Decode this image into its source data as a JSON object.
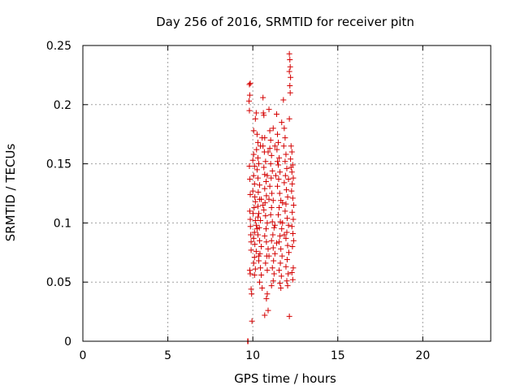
{
  "chart_data": {
    "type": "scatter",
    "title": "Day 256 of 2016, SRMTID for receiver pitn",
    "xlabel": "GPS time / hours",
    "ylabel": "SRMTID / TECUs",
    "xlim": [
      0,
      24
    ],
    "ylim": [
      0,
      0.25
    ],
    "x_ticks": [
      0,
      5,
      10,
      15,
      20
    ],
    "x_tick_labels": [
      "0",
      "5",
      "10",
      "15",
      "20"
    ],
    "y_ticks": [
      0,
      0.05,
      0.1,
      0.15,
      0.2,
      0.25
    ],
    "y_tick_labels": [
      "0",
      "0.05",
      "0.1",
      "0.15",
      "0.2",
      "0.25"
    ],
    "grid": true,
    "marker": "+",
    "color": "#d40000",
    "points": [
      [
        9.7,
        0.0
      ],
      [
        9.7,
        0.0
      ],
      [
        9.72,
        0.0
      ],
      [
        9.8,
        0.217
      ],
      [
        9.85,
        0.218
      ],
      [
        9.82,
        0.208
      ],
      [
        9.78,
        0.203
      ],
      [
        9.8,
        0.195
      ],
      [
        9.8,
        0.148
      ],
      [
        9.83,
        0.137
      ],
      [
        9.85,
        0.124
      ],
      [
        9.82,
        0.11
      ],
      [
        9.85,
        0.103
      ],
      [
        9.88,
        0.09
      ],
      [
        9.9,
        0.077
      ],
      [
        9.82,
        0.06
      ],
      [
        9.85,
        0.057
      ],
      [
        9.9,
        0.044
      ],
      [
        9.93,
        0.04
      ],
      [
        9.95,
        0.017
      ],
      [
        9.86,
        0.097
      ],
      [
        9.9,
        0.084
      ],
      [
        10.0,
        0.153
      ],
      [
        10.05,
        0.158
      ],
      [
        10.1,
        0.148
      ],
      [
        10.05,
        0.14
      ],
      [
        10.1,
        0.133
      ],
      [
        10.0,
        0.127
      ],
      [
        10.12,
        0.122
      ],
      [
        10.15,
        0.118
      ],
      [
        10.08,
        0.113
      ],
      [
        10.02,
        0.108
      ],
      [
        10.15,
        0.102
      ],
      [
        10.2,
        0.098
      ],
      [
        10.1,
        0.092
      ],
      [
        10.05,
        0.087
      ],
      [
        10.12,
        0.082
      ],
      [
        10.2,
        0.076
      ],
      [
        10.1,
        0.071
      ],
      [
        10.05,
        0.066
      ],
      [
        10.15,
        0.061
      ],
      [
        10.1,
        0.056
      ],
      [
        10.2,
        0.193
      ],
      [
        10.25,
        0.175
      ],
      [
        10.3,
        0.168
      ],
      [
        10.22,
        0.162
      ],
      [
        10.3,
        0.155
      ],
      [
        10.35,
        0.15
      ],
      [
        10.25,
        0.145
      ],
      [
        10.3,
        0.138
      ],
      [
        10.4,
        0.132
      ],
      [
        10.32,
        0.126
      ],
      [
        10.4,
        0.12
      ],
      [
        10.3,
        0.114
      ],
      [
        10.35,
        0.108
      ],
      [
        10.45,
        0.102
      ],
      [
        10.38,
        0.096
      ],
      [
        10.3,
        0.09
      ],
      [
        10.4,
        0.085
      ],
      [
        10.5,
        0.08
      ],
      [
        10.42,
        0.074
      ],
      [
        10.35,
        0.068
      ],
      [
        10.45,
        0.062
      ],
      [
        10.5,
        0.056
      ],
      [
        10.4,
        0.05
      ],
      [
        10.55,
        0.045
      ],
      [
        10.6,
        0.206
      ],
      [
        10.62,
        0.193
      ],
      [
        10.65,
        0.191
      ],
      [
        10.7,
        0.172
      ],
      [
        10.6,
        0.165
      ],
      [
        10.68,
        0.16
      ],
      [
        10.75,
        0.152
      ],
      [
        10.65,
        0.147
      ],
      [
        10.7,
        0.141
      ],
      [
        10.78,
        0.135
      ],
      [
        10.7,
        0.129
      ],
      [
        10.8,
        0.123
      ],
      [
        10.72,
        0.117
      ],
      [
        10.65,
        0.111
      ],
      [
        10.75,
        0.106
      ],
      [
        10.85,
        0.1
      ],
      [
        10.78,
        0.095
      ],
      [
        10.7,
        0.089
      ],
      [
        10.8,
        0.084
      ],
      [
        10.9,
        0.078
      ],
      [
        10.82,
        0.072
      ],
      [
        10.75,
        0.066
      ],
      [
        10.85,
        0.06
      ],
      [
        10.7,
        0.022
      ],
      [
        10.9,
        0.026
      ],
      [
        10.8,
        0.036
      ],
      [
        10.85,
        0.04
      ],
      [
        10.95,
        0.196
      ],
      [
        11.0,
        0.178
      ],
      [
        11.05,
        0.17
      ],
      [
        11.0,
        0.163
      ],
      [
        11.1,
        0.157
      ],
      [
        11.05,
        0.15
      ],
      [
        11.15,
        0.144
      ],
      [
        11.08,
        0.138
      ],
      [
        11.0,
        0.131
      ],
      [
        11.12,
        0.125
      ],
      [
        11.2,
        0.119
      ],
      [
        11.1,
        0.113
      ],
      [
        11.05,
        0.107
      ],
      [
        11.15,
        0.101
      ],
      [
        11.25,
        0.096
      ],
      [
        11.18,
        0.09
      ],
      [
        11.1,
        0.085
      ],
      [
        11.2,
        0.079
      ],
      [
        11.3,
        0.074
      ],
      [
        11.22,
        0.068
      ],
      [
        11.15,
        0.062
      ],
      [
        11.25,
        0.057
      ],
      [
        11.2,
        0.051
      ],
      [
        11.1,
        0.047
      ],
      [
        11.4,
        0.192
      ],
      [
        11.45,
        0.175
      ],
      [
        11.5,
        0.168
      ],
      [
        11.42,
        0.162
      ],
      [
        11.55,
        0.155
      ],
      [
        11.5,
        0.149
      ],
      [
        11.6,
        0.143
      ],
      [
        11.52,
        0.137
      ],
      [
        11.45,
        0.131
      ],
      [
        11.58,
        0.125
      ],
      [
        11.65,
        0.119
      ],
      [
        11.55,
        0.113
      ],
      [
        11.5,
        0.107
      ],
      [
        11.62,
        0.101
      ],
      [
        11.7,
        0.095
      ],
      [
        11.6,
        0.089
      ],
      [
        11.55,
        0.084
      ],
      [
        11.65,
        0.078
      ],
      [
        11.72,
        0.072
      ],
      [
        11.62,
        0.066
      ],
      [
        11.55,
        0.06
      ],
      [
        11.68,
        0.055
      ],
      [
        11.6,
        0.049
      ],
      [
        11.65,
        0.045
      ],
      [
        11.8,
        0.204
      ],
      [
        11.85,
        0.18
      ],
      [
        11.9,
        0.172
      ],
      [
        11.82,
        0.165
      ],
      [
        11.95,
        0.158
      ],
      [
        11.9,
        0.152
      ],
      [
        12.0,
        0.146
      ],
      [
        11.92,
        0.14
      ],
      [
        11.85,
        0.134
      ],
      [
        11.98,
        0.128
      ],
      [
        12.05,
        0.122
      ],
      [
        11.95,
        0.116
      ],
      [
        11.9,
        0.11
      ],
      [
        12.02,
        0.104
      ],
      [
        12.1,
        0.098
      ],
      [
        12.0,
        0.092
      ],
      [
        11.95,
        0.087
      ],
      [
        12.05,
        0.081
      ],
      [
        12.12,
        0.075
      ],
      [
        12.02,
        0.069
      ],
      [
        11.95,
        0.063
      ],
      [
        12.08,
        0.057
      ],
      [
        12.0,
        0.051
      ],
      [
        12.05,
        0.047
      ],
      [
        12.15,
        0.243
      ],
      [
        12.18,
        0.238
      ],
      [
        12.2,
        0.232
      ],
      [
        12.15,
        0.228
      ],
      [
        12.22,
        0.223
      ],
      [
        12.18,
        0.216
      ],
      [
        12.2,
        0.21
      ],
      [
        12.15,
        0.188
      ],
      [
        12.25,
        0.165
      ],
      [
        12.3,
        0.16
      ],
      [
        12.22,
        0.154
      ],
      [
        12.35,
        0.149
      ],
      [
        12.3,
        0.143
      ],
      [
        12.38,
        0.138
      ],
      [
        12.32,
        0.133
      ],
      [
        12.28,
        0.127
      ],
      [
        12.35,
        0.121
      ],
      [
        12.4,
        0.115
      ],
      [
        12.32,
        0.109
      ],
      [
        12.38,
        0.103
      ],
      [
        12.3,
        0.097
      ],
      [
        12.36,
        0.091
      ],
      [
        12.4,
        0.085
      ],
      [
        12.33,
        0.08
      ],
      [
        12.38,
        0.062
      ],
      [
        12.3,
        0.058
      ],
      [
        12.35,
        0.052
      ],
      [
        12.15,
        0.021
      ],
      [
        10.45,
        0.165
      ],
      [
        10.55,
        0.172
      ],
      [
        10.9,
        0.16
      ],
      [
        11.3,
        0.165
      ],
      [
        11.35,
        0.14
      ],
      [
        10.25,
        0.095
      ],
      [
        10.6,
        0.115
      ],
      [
        10.95,
        0.12
      ],
      [
        11.3,
        0.098
      ],
      [
        11.75,
        0.117
      ],
      [
        12.1,
        0.137
      ],
      [
        10.35,
        0.072
      ],
      [
        10.95,
        0.072
      ],
      [
        11.4,
        0.083
      ],
      [
        11.85,
        0.09
      ],
      [
        10.05,
        0.178
      ],
      [
        10.15,
        0.188
      ],
      [
        11.7,
        0.185
      ],
      [
        11.2,
        0.18
      ],
      [
        10.5,
        0.12
      ],
      [
        12.25,
        0.147
      ],
      [
        11.45,
        0.152
      ],
      [
        10.85,
        0.14
      ],
      [
        10.3,
        0.105
      ],
      [
        11.75,
        0.1
      ]
    ]
  }
}
